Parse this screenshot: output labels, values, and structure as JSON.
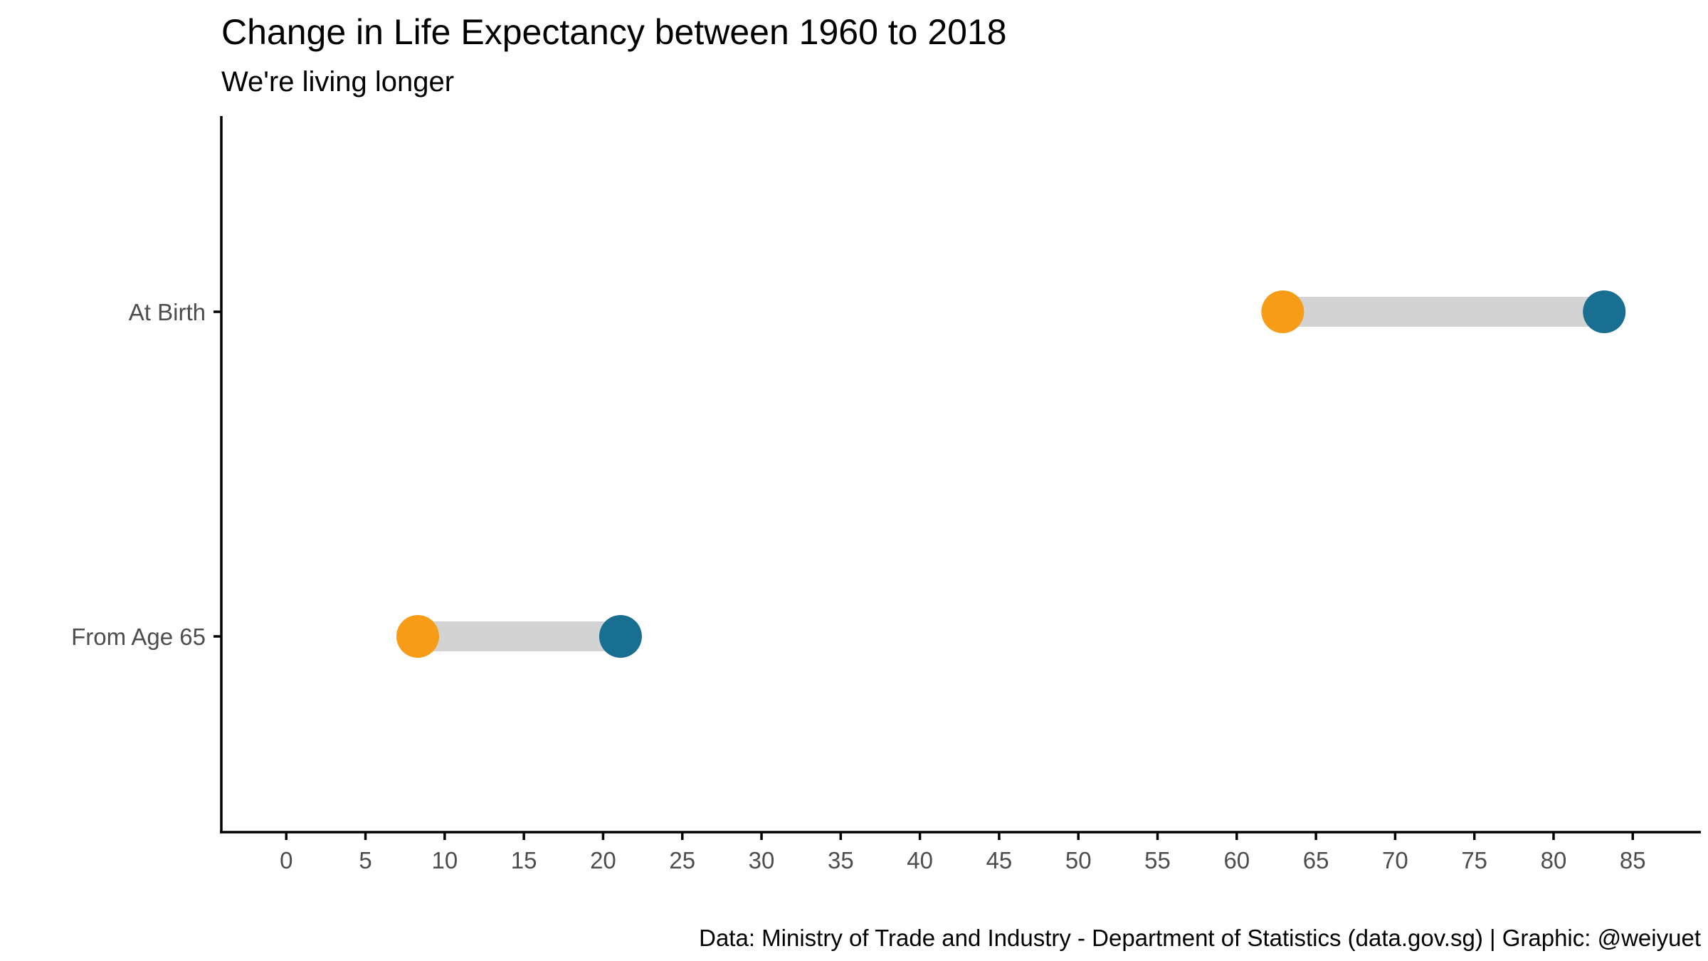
{
  "chart_data": {
    "type": "dumbbell",
    "title": "Change in Life Expectancy between 1960 to 2018",
    "subtitle": "We're living longer",
    "caption": "Data: Ministry of Trade and Industry - Department of Statistics (data.gov.sg) | Graphic: @weiyuet",
    "xlabel": "",
    "ylabel": "",
    "categories": [
      "At Birth",
      "From Age 65"
    ],
    "series": [
      {
        "values": [
          62.9,
          8.3
        ],
        "color": "#F79C16"
      },
      {
        "values": [
          83.2,
          21.1
        ],
        "color": "#186F91"
      }
    ],
    "segment_color": "#D3D3D3",
    "x_ticks": [
      0,
      5,
      10,
      15,
      20,
      25,
      30,
      35,
      40,
      45,
      50,
      55,
      60,
      65,
      70,
      75,
      80,
      85
    ],
    "xlim": [
      -4.1,
      89.3
    ],
    "grid": false,
    "legend": "none"
  }
}
